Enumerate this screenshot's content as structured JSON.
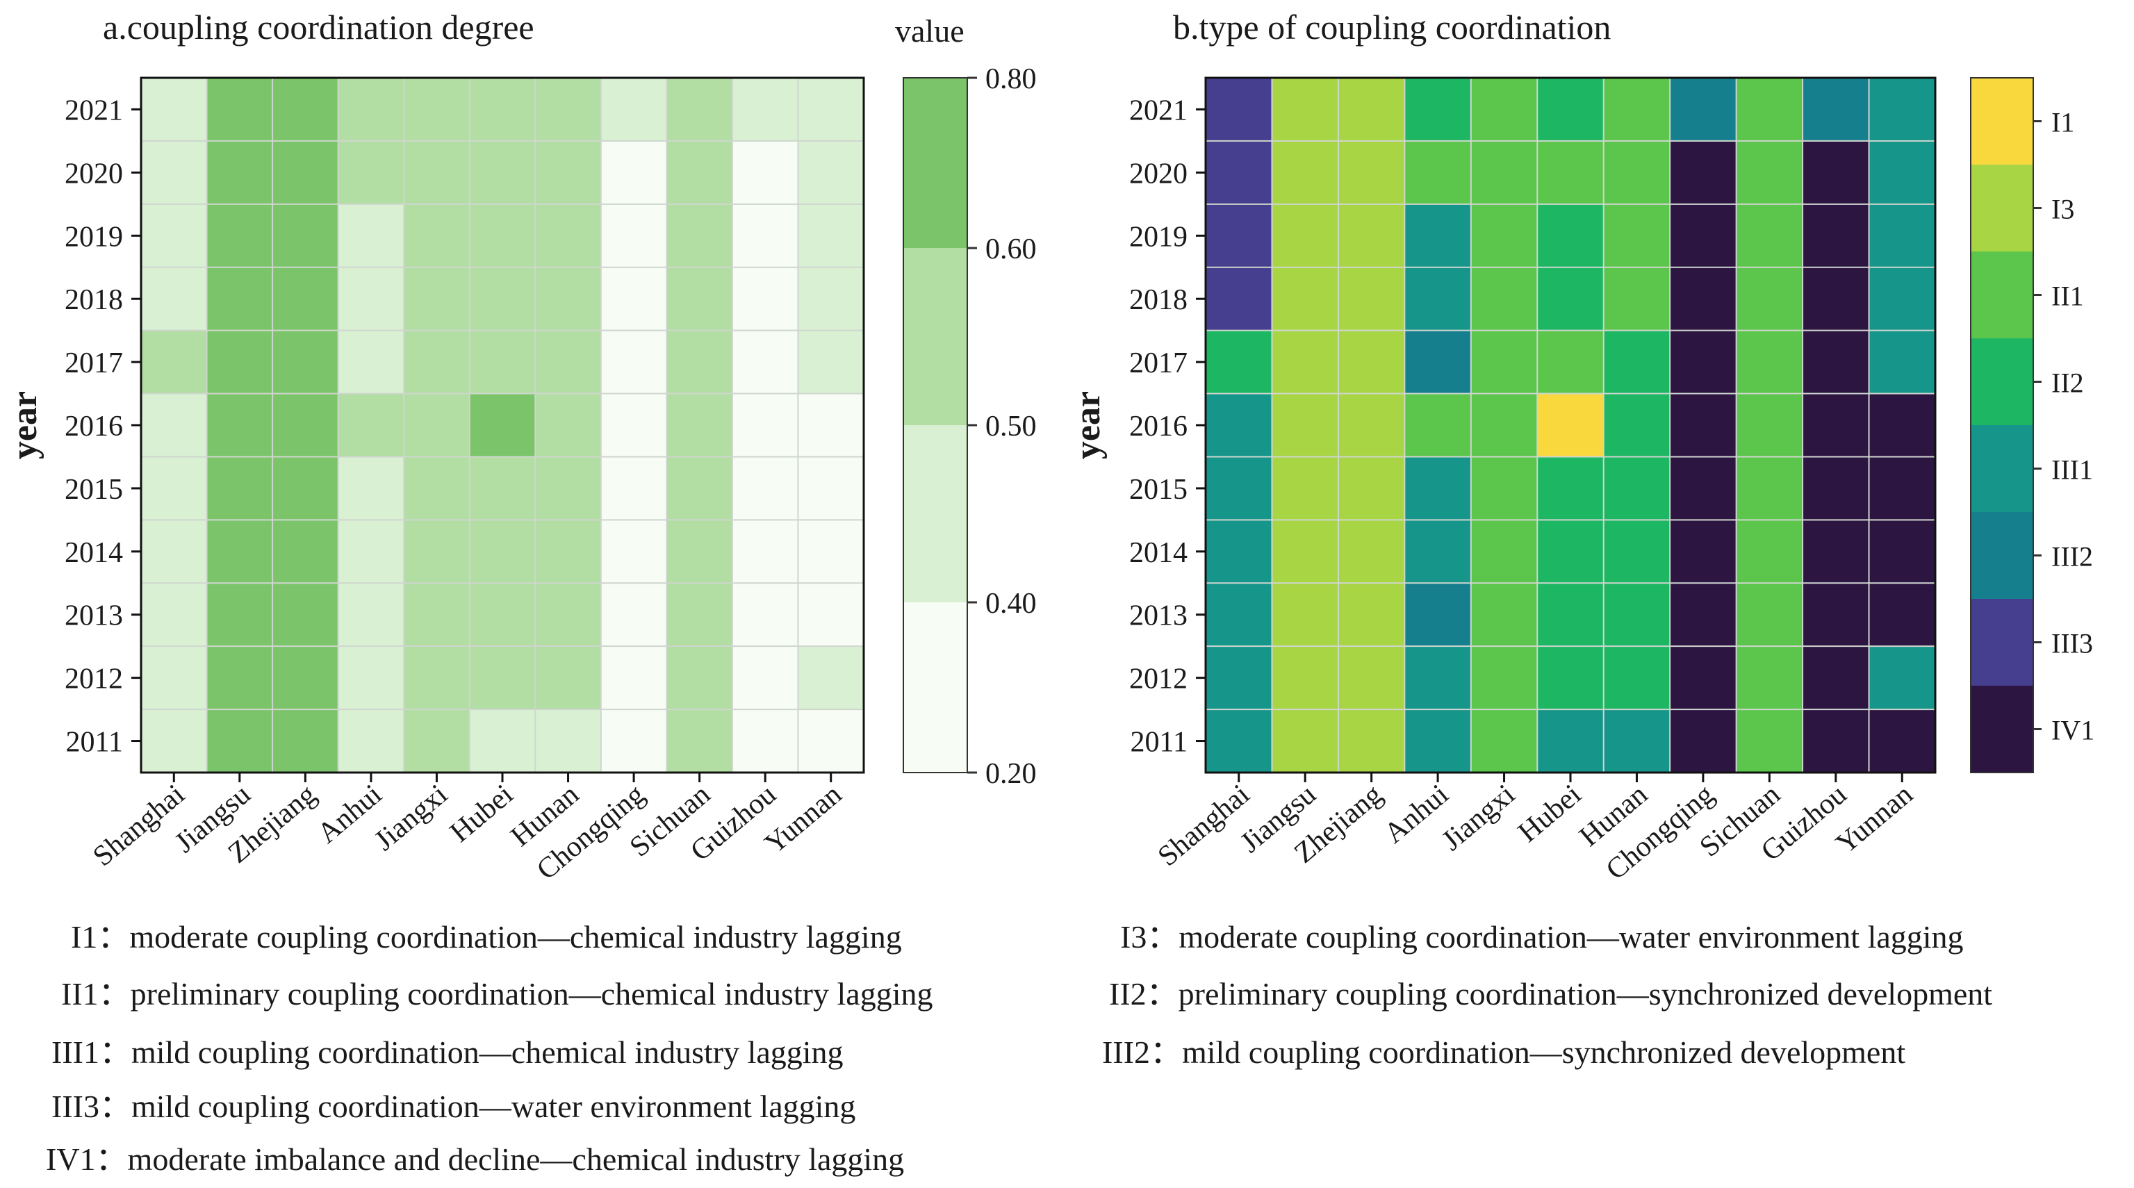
{
  "chart_data": [
    {
      "id": "a",
      "type": "heatmap",
      "title": "a.coupling coordination degree",
      "xlabel": "",
      "ylabel": "year",
      "x_categories": [
        "Shanghai",
        "Jiangsu",
        "Zhejiang",
        "Anhui",
        "Jiangxi",
        "Hubei",
        "Hunan",
        "Chongqing",
        "Sichuan",
        "Guizhou",
        "Yunnan"
      ],
      "y_categories": [
        "2021",
        "2020",
        "2019",
        "2018",
        "2017",
        "2016",
        "2015",
        "2014",
        "2013",
        "2012",
        "2011"
      ],
      "colorbar": {
        "title": "value",
        "ticks": [
          "0.80",
          "0.60",
          "0.50",
          "0.40",
          "0.20"
        ],
        "bins": [
          {
            "min": 0.2,
            "max": 0.4,
            "color": "#f7fcf5"
          },
          {
            "min": 0.4,
            "max": 0.5,
            "color": "#d9f0d3"
          },
          {
            "min": 0.5,
            "max": 0.6,
            "color": "#b2dda3"
          },
          {
            "min": 0.6,
            "max": 0.8,
            "color": "#7cc46a"
          }
        ]
      },
      "values": [
        [
          0.45,
          0.63,
          0.63,
          0.53,
          0.52,
          0.52,
          0.52,
          0.45,
          0.55,
          0.42,
          0.46
        ],
        [
          0.45,
          0.63,
          0.63,
          0.53,
          0.52,
          0.52,
          0.52,
          0.35,
          0.55,
          0.35,
          0.46
        ],
        [
          0.45,
          0.63,
          0.63,
          0.45,
          0.52,
          0.52,
          0.52,
          0.35,
          0.55,
          0.35,
          0.46
        ],
        [
          0.45,
          0.63,
          0.63,
          0.45,
          0.52,
          0.52,
          0.52,
          0.35,
          0.55,
          0.35,
          0.46
        ],
        [
          0.55,
          0.63,
          0.63,
          0.45,
          0.52,
          0.52,
          0.52,
          0.35,
          0.55,
          0.35,
          0.46
        ],
        [
          0.45,
          0.63,
          0.63,
          0.53,
          0.53,
          0.7,
          0.52,
          0.35,
          0.55,
          0.35,
          0.35
        ],
        [
          0.45,
          0.63,
          0.63,
          0.45,
          0.52,
          0.52,
          0.52,
          0.35,
          0.55,
          0.35,
          0.35
        ],
        [
          0.45,
          0.63,
          0.63,
          0.45,
          0.52,
          0.52,
          0.52,
          0.35,
          0.55,
          0.35,
          0.35
        ],
        [
          0.45,
          0.63,
          0.63,
          0.45,
          0.52,
          0.52,
          0.52,
          0.35,
          0.55,
          0.35,
          0.35
        ],
        [
          0.45,
          0.63,
          0.63,
          0.45,
          0.52,
          0.52,
          0.52,
          0.35,
          0.55,
          0.35,
          0.46
        ],
        [
          0.45,
          0.63,
          0.63,
          0.45,
          0.53,
          0.45,
          0.45,
          0.35,
          0.58,
          0.35,
          0.35
        ]
      ]
    },
    {
      "id": "b",
      "type": "heatmap",
      "title": "b.type of coupling coordination",
      "xlabel": "",
      "ylabel": "year",
      "x_categories": [
        "Shanghai",
        "Jiangsu",
        "Zhejiang",
        "Anhui",
        "Jiangxi",
        "Hubei",
        "Hunan",
        "Chongqing",
        "Sichuan",
        "Guizhou",
        "Yunnan"
      ],
      "y_categories": [
        "2021",
        "2020",
        "2019",
        "2018",
        "2017",
        "2016",
        "2015",
        "2014",
        "2013",
        "2012",
        "2011"
      ],
      "colorbar": {
        "title": "",
        "categories": [
          {
            "code": "I1",
            "color": "#f9d83e"
          },
          {
            "code": "I3",
            "color": "#a8d544"
          },
          {
            "code": "II1",
            "color": "#5cc54b"
          },
          {
            "code": "II2",
            "color": "#1db663"
          },
          {
            "code": "III1",
            "color": "#16958a"
          },
          {
            "code": "III2",
            "color": "#157f8e"
          },
          {
            "code": "III3",
            "color": "#463e8e"
          },
          {
            "code": "IV1",
            "color": "#2c1540"
          }
        ]
      },
      "values": [
        [
          "III3",
          "I3",
          "I3",
          "II2",
          "II1",
          "II2",
          "II1",
          "III2",
          "II1",
          "III2",
          "III1"
        ],
        [
          "III3",
          "I3",
          "I3",
          "II1",
          "II1",
          "II1",
          "II1",
          "IV1",
          "II1",
          "IV1",
          "III1"
        ],
        [
          "III3",
          "I3",
          "I3",
          "III1",
          "II1",
          "II2",
          "II1",
          "IV1",
          "II1",
          "IV1",
          "III1"
        ],
        [
          "III3",
          "I3",
          "I3",
          "III1",
          "II1",
          "II2",
          "II1",
          "IV1",
          "II1",
          "IV1",
          "III1"
        ],
        [
          "II2",
          "I3",
          "I3",
          "III2",
          "II1",
          "II1",
          "II2",
          "IV1",
          "II1",
          "IV1",
          "III1"
        ],
        [
          "III1",
          "I3",
          "I3",
          "II1",
          "II1",
          "I1",
          "II2",
          "IV1",
          "II1",
          "IV1",
          "IV1"
        ],
        [
          "III1",
          "I3",
          "I3",
          "III1",
          "II1",
          "II2",
          "II2",
          "IV1",
          "II1",
          "IV1",
          "IV1"
        ],
        [
          "III1",
          "I3",
          "I3",
          "III1",
          "II1",
          "II2",
          "II2",
          "IV1",
          "II1",
          "IV1",
          "IV1"
        ],
        [
          "III1",
          "I3",
          "I3",
          "III2",
          "II1",
          "II2",
          "II2",
          "IV1",
          "II1",
          "IV1",
          "IV1"
        ],
        [
          "III1",
          "I3",
          "I3",
          "III1",
          "II1",
          "II2",
          "II2",
          "IV1",
          "II1",
          "IV1",
          "III1"
        ],
        [
          "III1",
          "I3",
          "I3",
          "III1",
          "II1",
          "III1",
          "III1",
          "IV1",
          "II1",
          "IV1",
          "IV1"
        ]
      ]
    }
  ],
  "notes": {
    "left": [
      {
        "code": "I1：",
        "text": "moderate coupling coordination—chemical industry lagging"
      },
      {
        "code": "II1：",
        "text": "preliminary coupling coordination—chemical industry lagging"
      },
      {
        "code": "III1：",
        "text": "mild coupling coordination—chemical industry lagging"
      },
      {
        "code": "III3：",
        "text": "mild coupling coordination—water environment lagging"
      },
      {
        "code": "IV1：",
        "text": "moderate imbalance and decline—chemical industry lagging"
      }
    ],
    "right": [
      {
        "code": "I3：",
        "text": "moderate coupling coordination—water environment lagging"
      },
      {
        "code": "II2：",
        "text": "preliminary coupling coordination—synchronized development"
      },
      {
        "code": "III2：",
        "text": "mild coupling coordination—synchronized development"
      }
    ]
  }
}
